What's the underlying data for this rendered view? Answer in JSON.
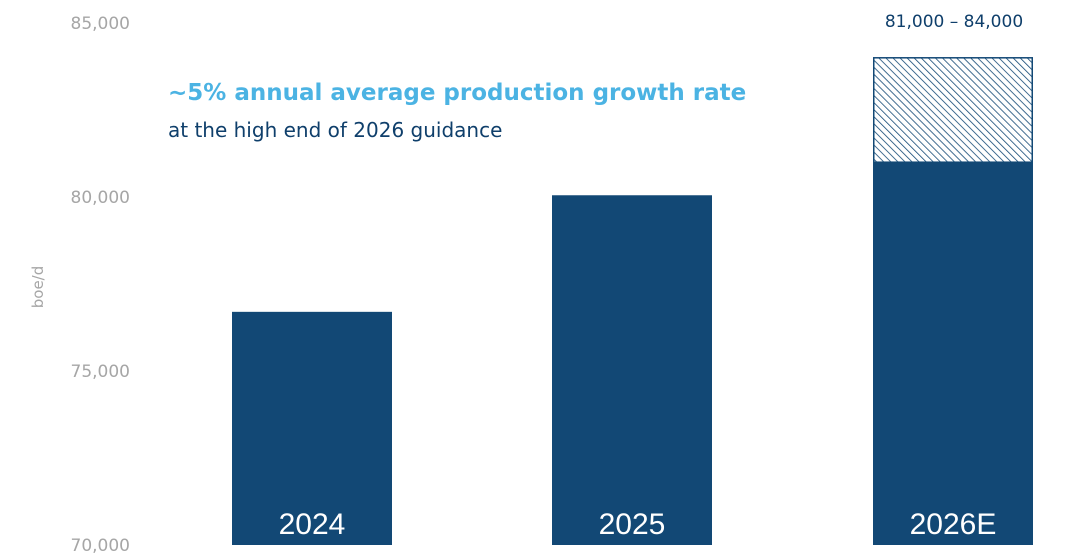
{
  "chart_data": {
    "type": "bar",
    "categories": [
      "2024",
      "2025",
      "2026E"
    ],
    "values": [
      76700,
      80050,
      81000
    ],
    "range_high": {
      "category": "2026E",
      "low": 81000,
      "high": 84000
    },
    "ylabel": "boe/d",
    "ylim": [
      70000,
      85000
    ],
    "yticks": [
      "70,000",
      "75,000",
      "80,000",
      "85,000"
    ],
    "ytick_values": [
      70000,
      75000,
      80000,
      85000
    ],
    "annotation_headline": "~5% annual average production growth rate",
    "annotation_sub": "at the high end of 2026 guidance",
    "range_label": "81,000 – 84,000",
    "grid": false,
    "colors": {
      "bar": "#124875",
      "headline": "#4bb3e3",
      "text": "#0f3f6b",
      "axis": "#a6a6a6"
    }
  }
}
